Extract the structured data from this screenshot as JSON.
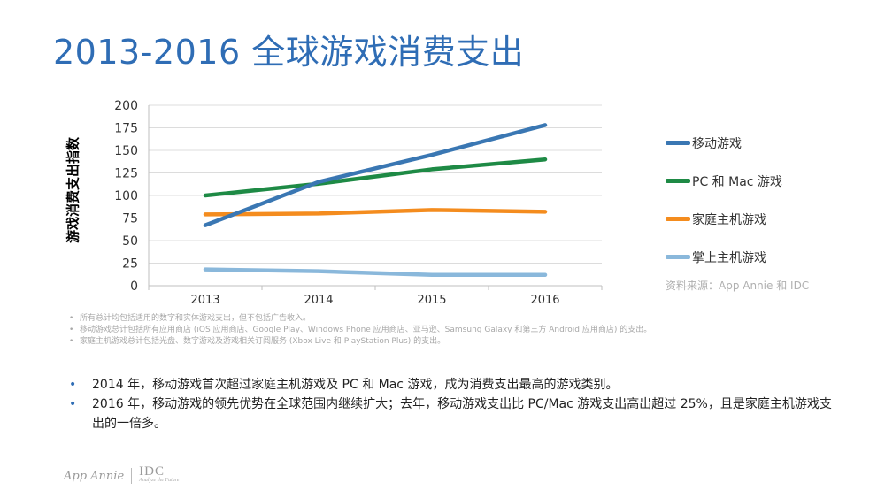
{
  "title": "2013-2016 全球游戏消费支出",
  "chart_data": {
    "type": "line",
    "title": "2013-2016 全球游戏消费支出",
    "xlabel": "",
    "ylabel": "游戏消费支出指数",
    "categories": [
      "2013",
      "2014",
      "2015",
      "2016"
    ],
    "ylim": [
      0,
      200
    ],
    "yticks": [
      0,
      25,
      50,
      75,
      100,
      125,
      150,
      175,
      200
    ],
    "grid": true,
    "legend_position": "right",
    "series": [
      {
        "name": "移动游戏",
        "color": "#3a77b3",
        "values": [
          67,
          115,
          145,
          178
        ]
      },
      {
        "name": "PC 和 Mac 游戏",
        "color": "#1e8a45",
        "values": [
          100,
          113,
          129,
          140
        ]
      },
      {
        "name": "家庭主机游戏",
        "color": "#f48c1e",
        "values": [
          79,
          80,
          84,
          82
        ]
      },
      {
        "name": "掌上主机游戏",
        "color": "#8ab8db",
        "values": [
          18,
          16,
          12,
          12
        ]
      }
    ],
    "source": "资料来源：App Annie 和 IDC"
  },
  "notes": [
    "所有总计均包括适用的数字和实体游戏支出，但不包括广告收入。",
    "移动游戏总计包括所有应用商店 (iOS 应用商店、Google Play、Windows Phone 应用商店、亚马逊、Samsung Galaxy 和第三方 Android 应用商店) 的支出。",
    "家庭主机游戏总计包括光盘、数字游戏及游戏相关订阅服务 (Xbox Live 和 PlayStation Plus) 的支出。"
  ],
  "bullets": [
    "2014 年，移动游戏首次超过家庭主机游戏及 PC 和 Mac 游戏，成为消费支出最高的游戏类别。",
    "2016 年，移动游戏的领先优势在全球范围内继续扩大；去年，移动游戏支出比 PC/Mac 游戏支出高出超过 25%，且是家庭主机游戏支出的一倍多。"
  ],
  "logos": {
    "app_annie": "App Annie",
    "idc": "IDC",
    "idc_tagline": "Analyze the Future"
  }
}
